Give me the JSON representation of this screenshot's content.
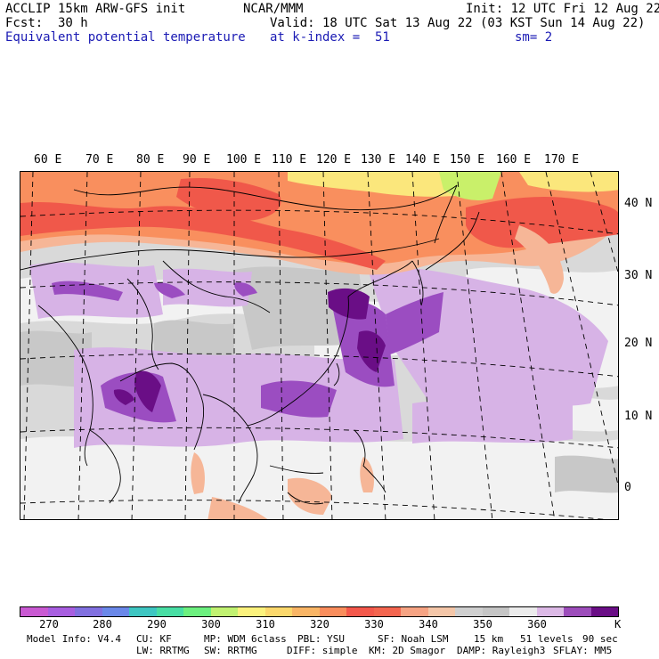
{
  "header": {
    "model": "ACCLIP 15km ARW-GFS init",
    "org": "NCAR/MMM",
    "init": "Init: 12 UTC Fri 12 Aug 22",
    "fcst_label": "Fcst:",
    "fcst_value": "30 h",
    "valid": "Valid: 18 UTC Sat 13 Aug 22 (03 KST Sun 14 Aug 22)",
    "field": "Equivalent potential temperature",
    "level": "at k-index =  51",
    "smooth": "sm= 2"
  },
  "map": {
    "lon_labels": [
      "60 E",
      "70 E",
      "80 E",
      "90 E",
      "100 E",
      "110 E",
      "120 E",
      "130 E",
      "140 E",
      "150 E",
      "160 E",
      "170 E"
    ],
    "lat_labels": [
      "40 N",
      "30 N",
      "20 N",
      "10 N",
      "0"
    ],
    "colors": {
      "cold": "#f2f2f2",
      "mid": "#c8c8c8",
      "light_purple": "#d7b3e6",
      "purple": "#9b4dc1",
      "dark_purple": "#6a0e86",
      "red": "#f0584a",
      "orange": "#f98f5e",
      "salmon": "#f6b697",
      "yellow": "#fbe77c",
      "green_yellow": "#c9f06a",
      "border": "#000000",
      "grid": "#000000"
    }
  },
  "colorbar": {
    "colors": [
      "#c959d2",
      "#a85ee0",
      "#8170e0",
      "#6a88e9",
      "#3ec6c2",
      "#48dea4",
      "#6cf07f",
      "#c1f271",
      "#fbf27d",
      "#fbd86c",
      "#f9b565",
      "#f98d5c",
      "#f4584b",
      "#f4654f",
      "#f6a383",
      "#f4c6a8",
      "#cfcfcf",
      "#c5c5c5",
      "#ececec",
      "#dcb9e6",
      "#9d4dbb",
      "#6a0e86"
    ],
    "ticks": [
      "270",
      "280",
      "290",
      "300",
      "310",
      "320",
      "330",
      "340",
      "350",
      "360"
    ],
    "unit": "K"
  },
  "footer": {
    "line1": [
      "Model Info: V4.4",
      "CU: KF",
      "MP: WDM 6class",
      "PBL: YSU",
      "SF: Noah LSM",
      "15 km",
      "51 levels",
      "90 sec"
    ],
    "line2": [
      "LW: RRTMG",
      "SW: RRTMG",
      "DIFF: simple",
      "KM: 2D Smagor",
      "DAMP: Rayleigh3",
      "SFLAY: MM5"
    ]
  }
}
